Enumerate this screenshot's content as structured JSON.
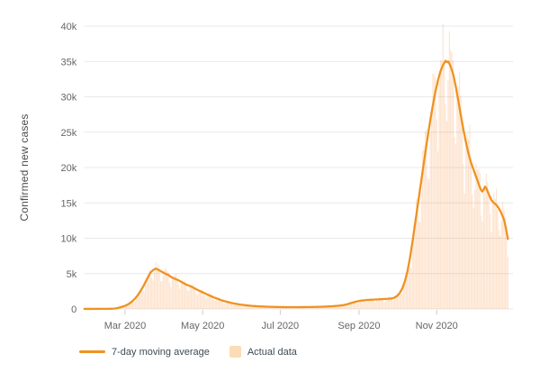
{
  "colors": {
    "background": "#ffffff",
    "grid": "#e8e8e8",
    "tick_mark": "#cccccc",
    "tick_text": "#666666",
    "axis_title_text": "#4d4d4d",
    "legend_text": "#3e4a54",
    "legend_square": "#fbdcb4",
    "line": "#ef9220",
    "bar": "#f7a35c"
  },
  "chart_data": {
    "type": "line+bar",
    "title": "",
    "xlabel": "",
    "ylabel": "Confirmed new cases",
    "ylim": [
      0,
      40000
    ],
    "x_domain_days": [
      0,
      333
    ],
    "grid": "horizontal",
    "legend_position": "bottom-left",
    "y_ticks": [
      {
        "v": 0,
        "label": "0"
      },
      {
        "v": 5000,
        "label": "5k"
      },
      {
        "v": 10000,
        "label": "10k"
      },
      {
        "v": 15000,
        "label": "15k"
      },
      {
        "v": 20000,
        "label": "20k"
      },
      {
        "v": 25000,
        "label": "25k"
      },
      {
        "v": 30000,
        "label": "30k"
      },
      {
        "v": 35000,
        "label": "35k"
      },
      {
        "v": 40000,
        "label": "40k"
      }
    ],
    "x_ticks": [
      {
        "day": 32,
        "label": "Mar 2020"
      },
      {
        "day": 93,
        "label": "May 2020"
      },
      {
        "day": 154,
        "label": "Jul 2020"
      },
      {
        "day": 216,
        "label": "Sep 2020"
      },
      {
        "day": 277,
        "label": "Nov 2020"
      }
    ],
    "series": [
      {
        "name": "7-day moving average",
        "type": "line",
        "color": "#ef9220",
        "points": [
          [
            0,
            10
          ],
          [
            10,
            10
          ],
          [
            18,
            15
          ],
          [
            22,
            30
          ],
          [
            24,
            60
          ],
          [
            26,
            130
          ],
          [
            28,
            220
          ],
          [
            30,
            330
          ],
          [
            32,
            450
          ],
          [
            34,
            620
          ],
          [
            36,
            850
          ],
          [
            38,
            1150
          ],
          [
            40,
            1500
          ],
          [
            42,
            1950
          ],
          [
            44,
            2500
          ],
          [
            46,
            3100
          ],
          [
            48,
            3800
          ],
          [
            50,
            4500
          ],
          [
            52,
            5150
          ],
          [
            54,
            5500
          ],
          [
            56,
            5700
          ],
          [
            58,
            5550
          ],
          [
            60,
            5350
          ],
          [
            62,
            5150
          ],
          [
            64,
            4950
          ],
          [
            66,
            4800
          ],
          [
            68,
            4550
          ],
          [
            70,
            4350
          ],
          [
            72,
            4200
          ],
          [
            74,
            4050
          ],
          [
            76,
            3850
          ],
          [
            78,
            3650
          ],
          [
            80,
            3450
          ],
          [
            82,
            3320
          ],
          [
            84,
            3170
          ],
          [
            86,
            2980
          ],
          [
            88,
            2780
          ],
          [
            90,
            2600
          ],
          [
            93,
            2350
          ],
          [
            96,
            2100
          ],
          [
            99,
            1850
          ],
          [
            102,
            1620
          ],
          [
            105,
            1420
          ],
          [
            108,
            1220
          ],
          [
            111,
            1060
          ],
          [
            114,
            920
          ],
          [
            117,
            800
          ],
          [
            120,
            700
          ],
          [
            123,
            610
          ],
          [
            126,
            540
          ],
          [
            129,
            480
          ],
          [
            132,
            430
          ],
          [
            136,
            380
          ],
          [
            140,
            340
          ],
          [
            145,
            305
          ],
          [
            150,
            285
          ],
          [
            155,
            265
          ],
          [
            160,
            255
          ],
          [
            165,
            252
          ],
          [
            170,
            258
          ],
          [
            175,
            268
          ],
          [
            180,
            280
          ],
          [
            185,
            300
          ],
          [
            190,
            335
          ],
          [
            195,
            385
          ],
          [
            200,
            455
          ],
          [
            204,
            555
          ],
          [
            207,
            680
          ],
          [
            210,
            850
          ],
          [
            213,
            1010
          ],
          [
            216,
            1130
          ],
          [
            219,
            1210
          ],
          [
            222,
            1265
          ],
          [
            226,
            1305
          ],
          [
            230,
            1345
          ],
          [
            234,
            1385
          ],
          [
            238,
            1430
          ],
          [
            242,
            1490
          ],
          [
            244,
            1610
          ],
          [
            246,
            1860
          ],
          [
            248,
            2260
          ],
          [
            250,
            2900
          ],
          [
            252,
            3900
          ],
          [
            254,
            5300
          ],
          [
            256,
            7200
          ],
          [
            258,
            9500
          ],
          [
            260,
            12000
          ],
          [
            262,
            14500
          ],
          [
            264,
            17000
          ],
          [
            266,
            19500
          ],
          [
            268,
            22000
          ],
          [
            270,
            24400
          ],
          [
            272,
            26700
          ],
          [
            274,
            28800
          ],
          [
            276,
            30700
          ],
          [
            278,
            32300
          ],
          [
            280,
            33600
          ],
          [
            282,
            34500
          ],
          [
            283,
            34800
          ],
          [
            284,
            35100
          ],
          [
            285,
            34900
          ],
          [
            286,
            35000
          ],
          [
            287,
            34700
          ],
          [
            288,
            34300
          ],
          [
            290,
            33200
          ],
          [
            292,
            31500
          ],
          [
            294,
            29500
          ],
          [
            296,
            27400
          ],
          [
            298,
            25400
          ],
          [
            300,
            23600
          ],
          [
            302,
            22000
          ],
          [
            304,
            20700
          ],
          [
            306,
            19700
          ],
          [
            308,
            18700
          ],
          [
            310,
            17700
          ],
          [
            311,
            17200
          ],
          [
            312,
            16800
          ],
          [
            313,
            16600
          ],
          [
            314,
            16900
          ],
          [
            315,
            17300
          ],
          [
            316,
            17100
          ],
          [
            318,
            16200
          ],
          [
            320,
            15400
          ],
          [
            322,
            15000
          ],
          [
            324,
            14700
          ],
          [
            326,
            14200
          ],
          [
            328,
            13500
          ],
          [
            330,
            12600
          ],
          [
            331,
            11800
          ],
          [
            332,
            10900
          ],
          [
            333,
            9900
          ]
        ]
      },
      {
        "name": "Actual data",
        "type": "bar",
        "color": "#f7a35c",
        "opacity": 0.3,
        "weekday_factors": [
          1.08,
          1.1,
          1.13,
          1.04,
          0.8,
          0.72,
          0.95
        ],
        "jitter": [
          0.05,
          2.39,
          0.03,
          0.711
        ],
        "max_bar_value": 41500
      }
    ]
  }
}
